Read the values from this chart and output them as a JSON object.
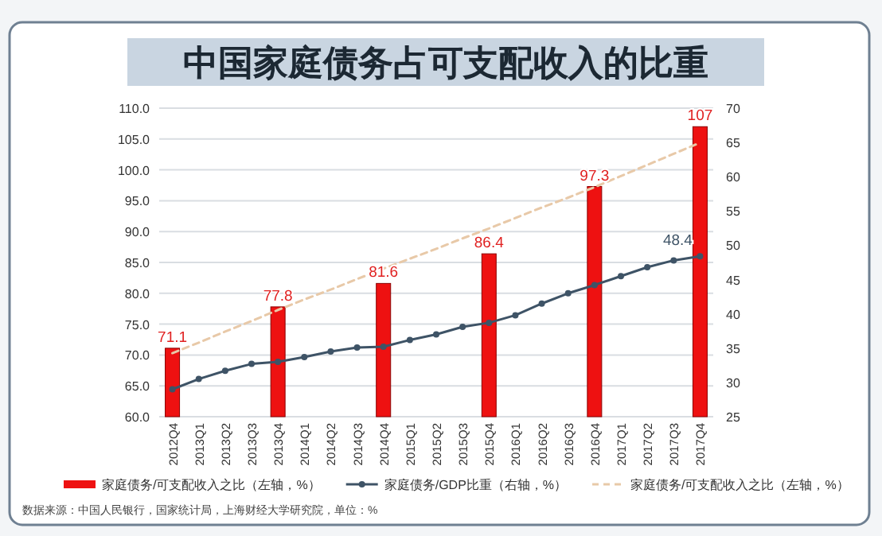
{
  "chart_data": {
    "type": "bar",
    "title": "中国家庭债务占可支配收入的比重",
    "categories": [
      "2012Q4",
      "2013Q1",
      "2013Q2",
      "2013Q3",
      "2013Q4",
      "2014Q1",
      "2014Q2",
      "2014Q3",
      "2014Q4",
      "2015Q1",
      "2015Q2",
      "2015Q3",
      "2015Q4",
      "2016Q1",
      "2016Q2",
      "2016Q3",
      "2016Q4",
      "2017Q1",
      "2017Q2",
      "2017Q3",
      "2017Q4"
    ],
    "series": [
      {
        "name": "家庭债务/可支配收入之比（左轴，%）",
        "color": "#ee1111",
        "values": [
          71.1,
          null,
          null,
          null,
          77.8,
          null,
          null,
          null,
          81.6,
          null,
          null,
          null,
          86.4,
          null,
          null,
          null,
          97.3,
          null,
          null,
          null,
          107
        ],
        "value_labels": [
          "71.1",
          null,
          null,
          null,
          "77.8",
          null,
          null,
          null,
          "81.6",
          null,
          null,
          null,
          "86.4",
          null,
          null,
          null,
          "97.3",
          null,
          null,
          null,
          "107"
        ]
      },
      {
        "name": "家庭债务/GDP比重（右轴，%）",
        "type": "line",
        "axis": "y2",
        "color": "#3e5366",
        "marker": "circle",
        "line_style": "solid",
        "values": [
          29.0,
          30.5,
          31.7,
          32.7,
          33.0,
          33.7,
          34.5,
          35.1,
          35.2,
          36.2,
          37.0,
          38.1,
          38.7,
          39.8,
          41.5,
          43.0,
          44.2,
          45.5,
          46.8,
          47.8,
          48.4
        ],
        "value_labels": [
          null,
          null,
          null,
          null,
          null,
          null,
          null,
          null,
          null,
          null,
          null,
          null,
          null,
          null,
          null,
          null,
          null,
          null,
          null,
          null,
          "48.4"
        ]
      },
      {
        "name": "家庭债务/可支配收入之比（左轴，%）",
        "type": "line",
        "color": "#e8c9a8",
        "marker": "none",
        "line_style": "dashed",
        "values": [
          70.3,
          72.0,
          73.8,
          75.5,
          77.3,
          79.0,
          80.6,
          82.3,
          84.0,
          85.6,
          87.2,
          88.9,
          90.5,
          92.2,
          93.9,
          95.5,
          97.2,
          99.0,
          100.8,
          102.6,
          104.4
        ]
      }
    ],
    "ylim": [
      60,
      110
    ],
    "yticks": [
      {
        "value": 60,
        "label": "60.0"
      },
      {
        "value": 65,
        "label": "65.0"
      },
      {
        "value": 70,
        "label": "70.0"
      },
      {
        "value": 75,
        "label": "75.0"
      },
      {
        "value": 80,
        "label": "80.0"
      },
      {
        "value": 85,
        "label": "85.0"
      },
      {
        "value": 90,
        "label": "90.0"
      },
      {
        "value": 95,
        "label": "95.0"
      },
      {
        "value": 100,
        "label": "100.0"
      },
      {
        "value": 105,
        "label": "105.0"
      },
      {
        "value": 110,
        "label": "110.0"
      }
    ],
    "y2lim": [
      25,
      70
    ],
    "y2ticks": [
      25,
      30,
      35,
      40,
      45,
      50,
      55,
      60,
      65,
      70
    ],
    "grid": "y",
    "legend": "bottom",
    "annotations": [
      "数据来源：中国人民银行，国家统计局，上海财经大学研究院，单位：%"
    ]
  }
}
